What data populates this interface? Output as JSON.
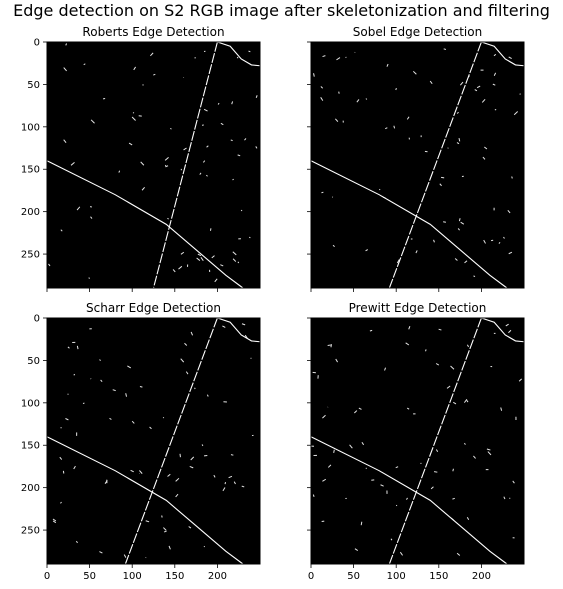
{
  "figure": {
    "title": "Edge detection on S2 RGB image after skeletonization and filtering"
  },
  "chart_data": [
    {
      "type": "heatmap",
      "title": "Roberts Edge Detection",
      "xlim": [
        0,
        250
      ],
      "ylim": [
        290,
        0
      ],
      "xticks": [],
      "yticks": [
        0,
        50,
        100,
        150,
        200,
        250
      ],
      "colormap": "gray",
      "lines": [
        {
          "name": "",
          "points": [
            [
              200,
              0
            ],
            [
              125,
              290
            ]
          ]
        },
        {
          "name": "",
          "points": [
            [
              0,
              140
            ],
            [
              80,
              180
            ],
            [
              140,
              215
            ],
            [
              175,
              245
            ],
            [
              210,
              275
            ],
            [
              230,
              290
            ]
          ]
        },
        {
          "name": "",
          "points": [
            [
              200,
              0
            ],
            [
              215,
              5
            ],
            [
              228,
              20
            ],
            [
              240,
              27
            ],
            [
              250,
              28
            ]
          ]
        }
      ]
    },
    {
      "type": "heatmap",
      "title": "Sobel Edge Detection",
      "xlim": [
        0,
        250
      ],
      "ylim": [
        290,
        0
      ],
      "xticks": [],
      "yticks": [],
      "colormap": "gray",
      "lines": [
        {
          "name": "",
          "points": [
            [
              200,
              0
            ],
            [
              92,
              290
            ]
          ]
        },
        {
          "name": "",
          "points": [
            [
              0,
              140
            ],
            [
              80,
              180
            ],
            [
              140,
              215
            ],
            [
              175,
              245
            ],
            [
              210,
              275
            ],
            [
              230,
              290
            ]
          ]
        },
        {
          "name": "",
          "points": [
            [
              200,
              0
            ],
            [
              215,
              5
            ],
            [
              228,
              20
            ],
            [
              240,
              27
            ],
            [
              250,
              28
            ]
          ]
        }
      ]
    },
    {
      "type": "heatmap",
      "title": "Scharr Edge Detection",
      "xlim": [
        0,
        250
      ],
      "ylim": [
        290,
        0
      ],
      "xticks": [
        0,
        50,
        100,
        150,
        200
      ],
      "yticks": [
        0,
        50,
        100,
        150,
        200,
        250
      ],
      "colormap": "gray",
      "lines": [
        {
          "name": "",
          "points": [
            [
              200,
              0
            ],
            [
              92,
              290
            ]
          ]
        },
        {
          "name": "",
          "points": [
            [
              0,
              140
            ],
            [
              80,
              180
            ],
            [
              140,
              215
            ],
            [
              175,
              245
            ],
            [
              210,
              275
            ],
            [
              230,
              290
            ]
          ]
        },
        {
          "name": "",
          "points": [
            [
              200,
              0
            ],
            [
              215,
              5
            ],
            [
              228,
              20
            ],
            [
              240,
              27
            ],
            [
              250,
              28
            ]
          ]
        }
      ]
    },
    {
      "type": "heatmap",
      "title": "Prewitt Edge Detection",
      "xlim": [
        0,
        250
      ],
      "ylim": [
        290,
        0
      ],
      "xticks": [
        0,
        50,
        100,
        150,
        200
      ],
      "yticks": [],
      "colormap": "gray",
      "lines": [
        {
          "name": "",
          "points": [
            [
              200,
              0
            ],
            [
              92,
              290
            ]
          ]
        },
        {
          "name": "",
          "points": [
            [
              0,
              140
            ],
            [
              80,
              180
            ],
            [
              140,
              215
            ],
            [
              175,
              245
            ],
            [
              210,
              275
            ],
            [
              230,
              290
            ]
          ]
        },
        {
          "name": "",
          "points": [
            [
              200,
              0
            ],
            [
              215,
              5
            ],
            [
              228,
              20
            ],
            [
              240,
              27
            ],
            [
              250,
              28
            ]
          ]
        }
      ]
    }
  ]
}
